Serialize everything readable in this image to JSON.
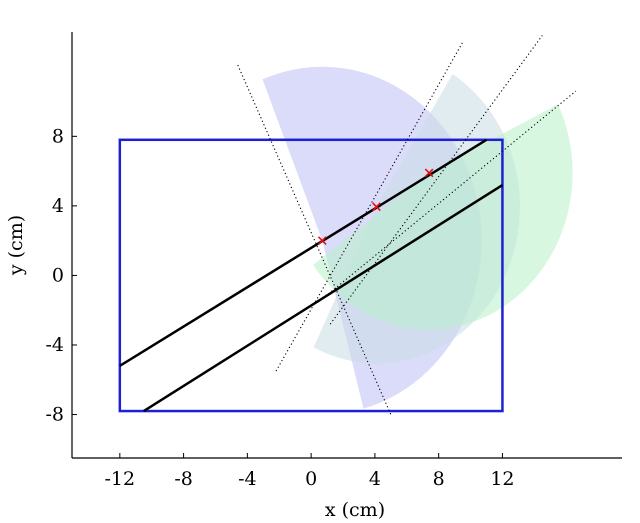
{
  "chart_data": {
    "type": "scatter",
    "title": "",
    "xlabel": "x (cm)",
    "ylabel": "y (cm)",
    "xlim": [
      -15,
      19.5
    ],
    "ylim": [
      -10.5,
      14
    ],
    "xticks": [
      -12,
      -8,
      -4,
      0,
      4,
      8,
      12
    ],
    "yticks": [
      -8,
      -4,
      0,
      4,
      8
    ],
    "xtick_labels": [
      "-12",
      "-8",
      "-4",
      "0",
      "4",
      "8",
      "12"
    ],
    "ytick_labels": [
      "-8",
      "-4",
      "0",
      "4",
      "8"
    ],
    "grid": false,
    "rectangle": {
      "x0": -12,
      "y0": -7.8,
      "x1": 12,
      "y1": 7.8,
      "color": "#1f1fd4"
    },
    "lines": [
      {
        "name": "",
        "x": [
          -12,
          11
        ],
        "y": [
          -5.2,
          7.8
        ],
        "color": "#000000"
      },
      {
        "name": "",
        "x": [
          -10.5,
          12
        ],
        "y": [
          -7.8,
          5.2
        ],
        "color": "#000000"
      }
    ],
    "points": [
      {
        "x": 0.7,
        "y": 2.0
      },
      {
        "x": 4.1,
        "y": 3.95
      },
      {
        "x": 7.4,
        "y": 5.9
      }
    ],
    "point_color": "#e01010",
    "wedges": [
      {
        "cx": 0.7,
        "cy": 2.0,
        "r": 10,
        "theta1": -75,
        "theta2": 112,
        "color": "#b8b8f5",
        "opacity": 0.5
      },
      {
        "cx": 4.1,
        "cy": 3.95,
        "r": 9,
        "theta1": -116,
        "theta2": 58,
        "color": "#c8dde6",
        "opacity": 0.55
      },
      {
        "cx": 7.4,
        "cy": 5.9,
        "r": 9,
        "theta1": -144,
        "theta2": 26,
        "color": "#b8f0c8",
        "opacity": 0.55
      }
    ],
    "dotted_lines": [
      {
        "x": [
          -4.6,
          5.0
        ],
        "y": [
          12.1,
          -8.0
        ]
      },
      {
        "x": [
          -2.2,
          9.5
        ],
        "y": [
          -5.5,
          13.4
        ]
      },
      {
        "x": [
          1.2,
          14.5
        ],
        "y": [
          -2.8,
          13.8
        ]
      },
      {
        "x": [
          0.9,
          16.6
        ],
        "y": [
          -1.2,
          10.6
        ]
      }
    ]
  }
}
